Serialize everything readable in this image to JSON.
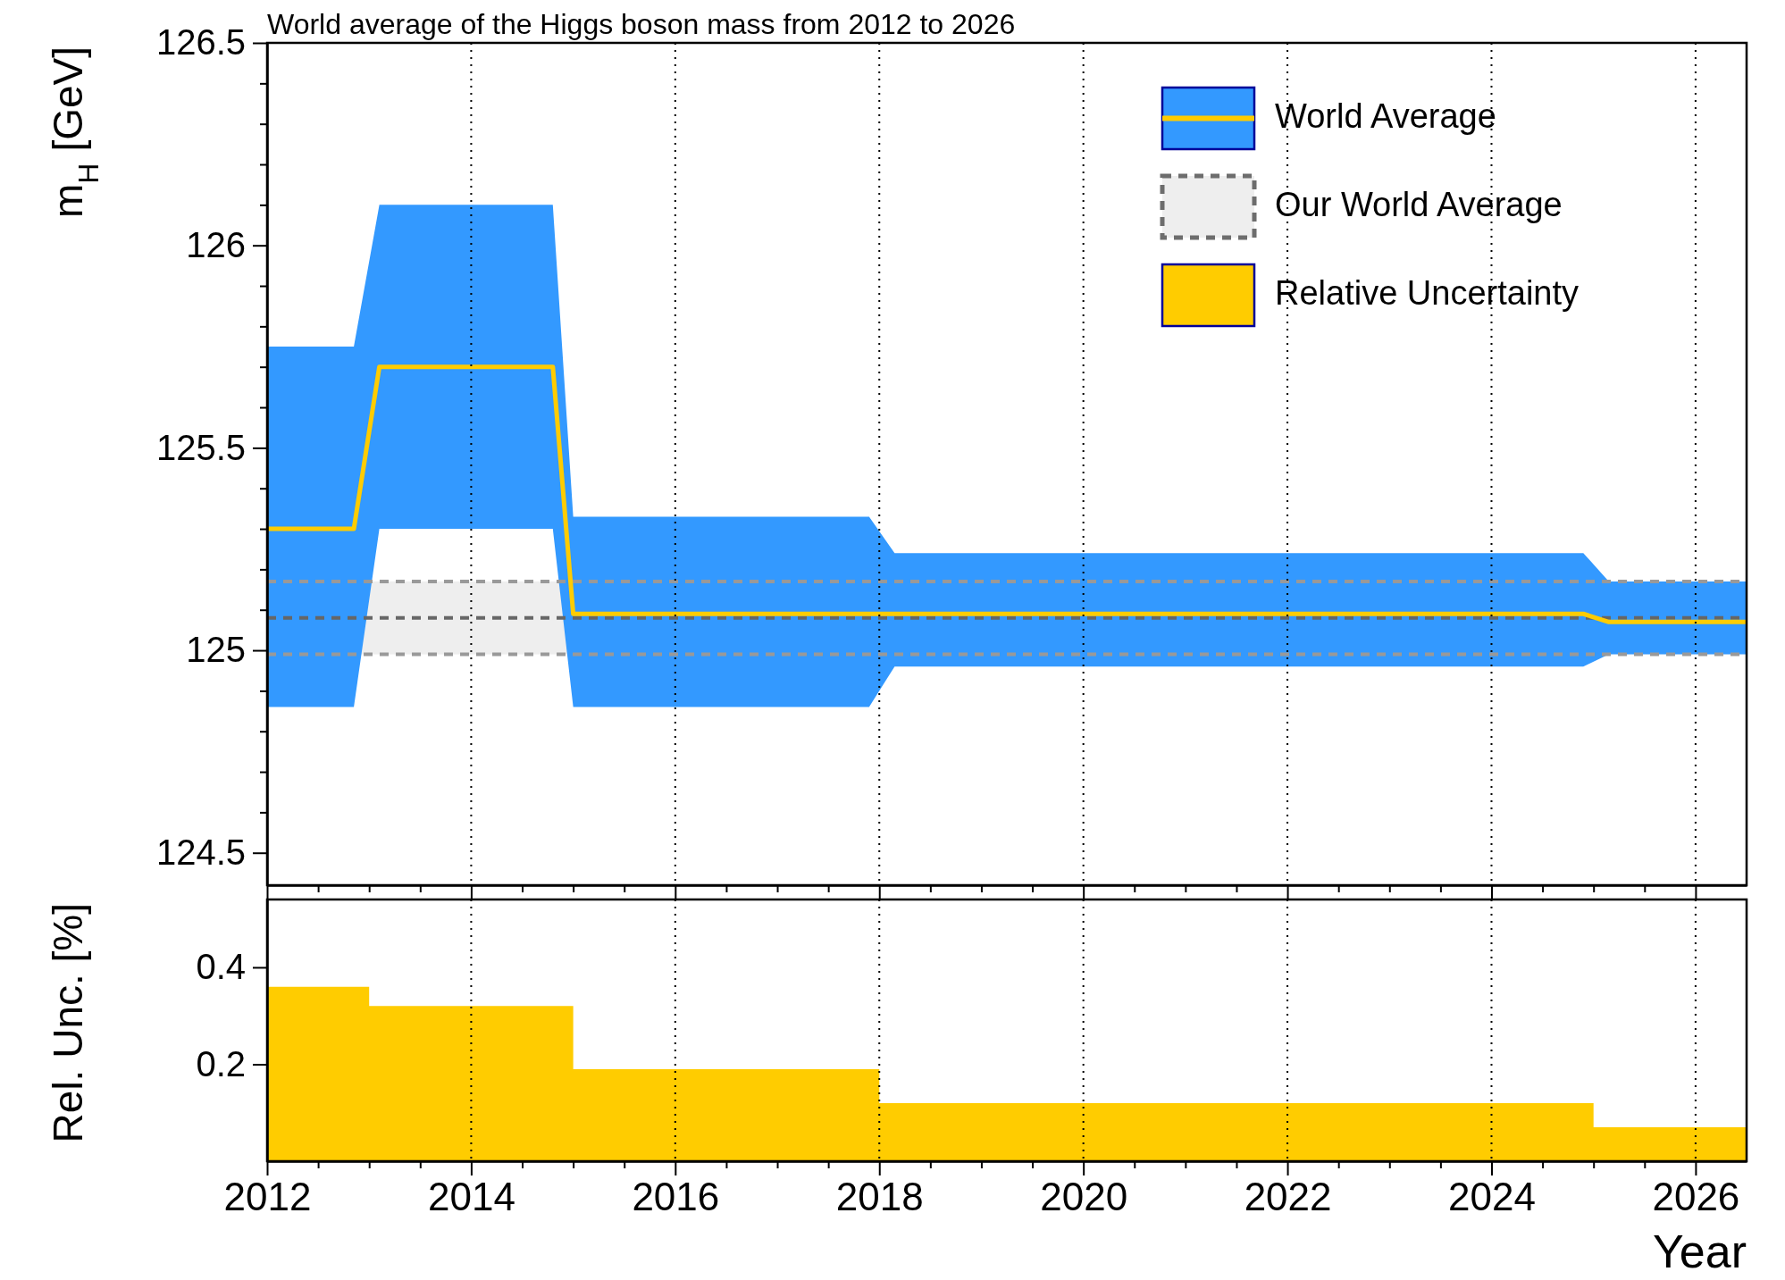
{
  "chart_data": [
    {
      "type": "line",
      "title": "World average of the Higgs boson mass from 2012 to 2026",
      "ylabel": "m$_{H}$ [GeV]",
      "x": [
        2012,
        2012.85,
        2013.1,
        2014.8,
        2015.0,
        2017.9,
        2018.15,
        2024.9,
        2025.15,
        2026.5
      ],
      "series": [
        {
          "name": "World Average",
          "color": "#ffcc00",
          "values": [
            125.3,
            125.3,
            125.7,
            125.7,
            125.09,
            125.09,
            125.09,
            125.09,
            125.07,
            125.07
          ],
          "lower": [
            124.86,
            124.86,
            125.3,
            125.3,
            124.86,
            124.86,
            124.96,
            124.96,
            124.99,
            124.99
          ],
          "upper": [
            125.75,
            125.75,
            126.1,
            126.1,
            125.33,
            125.33,
            125.24,
            125.24,
            125.17,
            125.17
          ]
        }
      ],
      "bands": [
        {
          "axis": "y",
          "from": 124.99,
          "to": 125.17,
          "label": "Our World Average",
          "color": "#eeeeee"
        }
      ],
      "ref_lines": [
        {
          "axis": "y",
          "value": 124.99,
          "color": "#999999",
          "line_style": "dashed"
        },
        {
          "axis": "y",
          "value": 125.17,
          "color": "#999999",
          "line_style": "dashed"
        },
        {
          "axis": "y",
          "value": 125.08,
          "color": "#666666",
          "line_style": "dashed"
        }
      ],
      "xlim": [
        2012,
        2026.5
      ],
      "ylim": [
        124.42,
        126.5
      ],
      "xticks": [
        {
          "value": 2012,
          "label": null
        },
        {
          "value": 2012.5,
          "label": null
        },
        {
          "value": 2013,
          "label": null
        },
        {
          "value": 2013.5,
          "label": null
        },
        {
          "value": 2014,
          "label": null
        },
        {
          "value": 2014.5,
          "label": null
        },
        {
          "value": 2015,
          "label": null
        },
        {
          "value": 2015.5,
          "label": null
        },
        {
          "value": 2016,
          "label": null
        },
        {
          "value": 2016.5,
          "label": null
        },
        {
          "value": 2017,
          "label": null
        },
        {
          "value": 2017.5,
          "label": null
        },
        {
          "value": 2018,
          "label": null
        },
        {
          "value": 2018.5,
          "label": null
        },
        {
          "value": 2019,
          "label": null
        },
        {
          "value": 2019.5,
          "label": null
        },
        {
          "value": 2020,
          "label": null
        },
        {
          "value": 2020.5,
          "label": null
        },
        {
          "value": 2021,
          "label": null
        },
        {
          "value": 2021.5,
          "label": null
        },
        {
          "value": 2022,
          "label": null
        },
        {
          "value": 2022.5,
          "label": null
        },
        {
          "value": 2023,
          "label": null
        },
        {
          "value": 2023.5,
          "label": null
        },
        {
          "value": 2024,
          "label": null
        },
        {
          "value": 2024.5,
          "label": null
        },
        {
          "value": 2025,
          "label": null
        },
        {
          "value": 2025.5,
          "label": null
        },
        {
          "value": 2026,
          "label": null
        }
      ],
      "yticks": [
        124.5,
        {
          "value": 124.6,
          "label": null
        },
        {
          "value": 124.7,
          "label": null
        },
        {
          "value": 124.8,
          "label": null
        },
        {
          "value": 124.9,
          "label": null
        },
        125,
        {
          "value": 125.1,
          "label": null
        },
        {
          "value": 125.2,
          "label": null
        },
        {
          "value": 125.3,
          "label": null
        },
        {
          "value": 125.4,
          "label": null
        },
        125.5,
        {
          "value": 125.6,
          "label": null
        },
        {
          "value": 125.7,
          "label": null
        },
        {
          "value": 125.8,
          "label": null
        },
        {
          "value": 125.9,
          "label": null
        },
        126,
        {
          "value": 126.1,
          "label": null
        },
        {
          "value": 126.2,
          "label": null
        },
        {
          "value": 126.3,
          "label": null
        },
        {
          "value": 126.4,
          "label": null
        },
        126.5
      ],
      "grid": "x",
      "legend": "top right",
      "tick_labels": "y"
    },
    {
      "type": "area",
      "ylabel": "Rel. Unc. [%]",
      "xlabel": "Year",
      "x": [
        2012,
        2013,
        2013,
        2015,
        2015,
        2018,
        2018,
        2025,
        2025,
        2026.5
      ],
      "series": [
        {
          "name": "Relative Uncertainty",
          "color": "#ffcc00",
          "values": [
            0.36,
            0.36,
            0.32,
            0.32,
            0.19,
            0.19,
            0.12,
            0.12,
            0.07,
            0.07
          ]
        }
      ],
      "xlim": [
        2012,
        2026.5
      ],
      "ylim": [
        0,
        0.54
      ],
      "xticks": [
        2012,
        {
          "value": 2012.5,
          "label": null
        },
        {
          "value": 2013,
          "label": null
        },
        {
          "value": 2013.5,
          "label": null
        },
        2014,
        {
          "value": 2014.5,
          "label": null
        },
        {
          "value": 2015,
          "label": null
        },
        {
          "value": 2015.5,
          "label": null
        },
        2016,
        {
          "value": 2016.5,
          "label": null
        },
        {
          "value": 2017,
          "label": null
        },
        {
          "value": 2017.5,
          "label": null
        },
        2018,
        {
          "value": 2018.5,
          "label": null
        },
        {
          "value": 2019,
          "label": null
        },
        {
          "value": 2019.5,
          "label": null
        },
        2020,
        {
          "value": 2020.5,
          "label": null
        },
        {
          "value": 2021,
          "label": null
        },
        {
          "value": 2021.5,
          "label": null
        },
        2022,
        {
          "value": 2022.5,
          "label": null
        },
        {
          "value": 2023,
          "label": null
        },
        {
          "value": 2023.5,
          "label": null
        },
        2024,
        {
          "value": 2024.5,
          "label": null
        },
        {
          "value": 2025,
          "label": null
        },
        {
          "value": 2025.5,
          "label": null
        },
        2026
      ],
      "yticks": [
        0.2,
        0.4
      ],
      "grid": "x"
    }
  ]
}
